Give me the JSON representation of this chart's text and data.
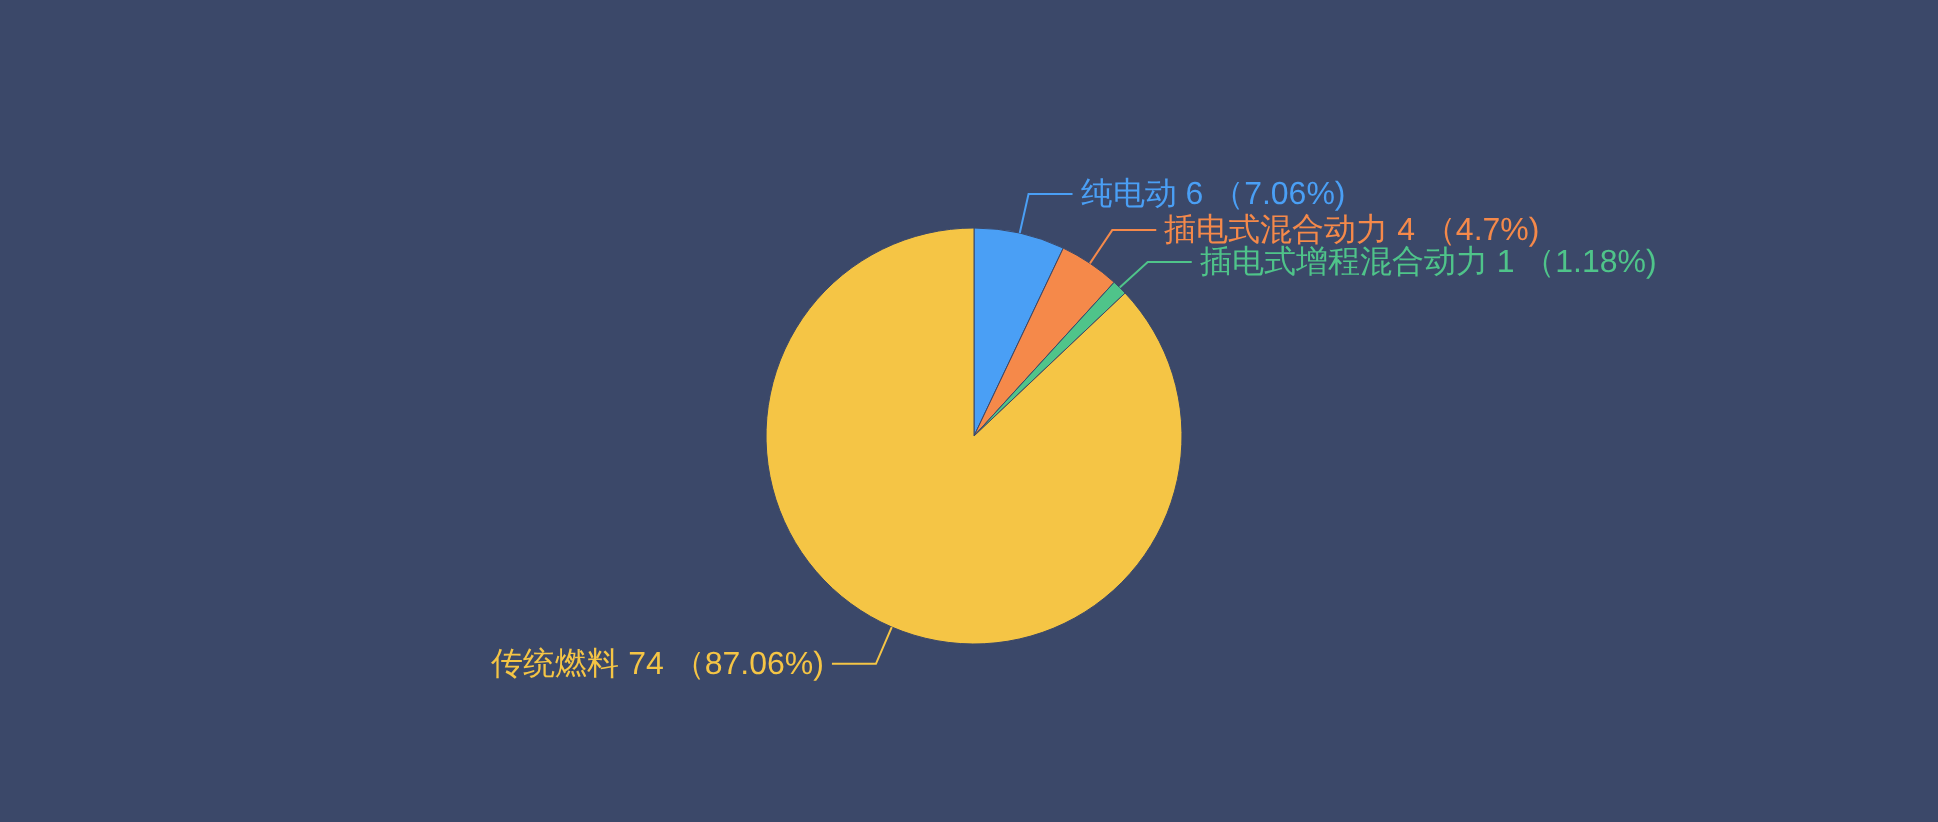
{
  "chart_data": {
    "type": "pie",
    "categories": [
      "纯电动",
      "插电式混合动力",
      "插电式增程混合动力",
      "传统燃料"
    ],
    "values": [
      6,
      4,
      1,
      74
    ],
    "colors": [
      "#4a9ff5",
      "#f5894a",
      "#4fc48a",
      "#f5c545"
    ],
    "value_labels": [
      "6 （7.06%)",
      "4 （4.7%)",
      "1 （1.18%)",
      "74 （87.06%)"
    ]
  }
}
